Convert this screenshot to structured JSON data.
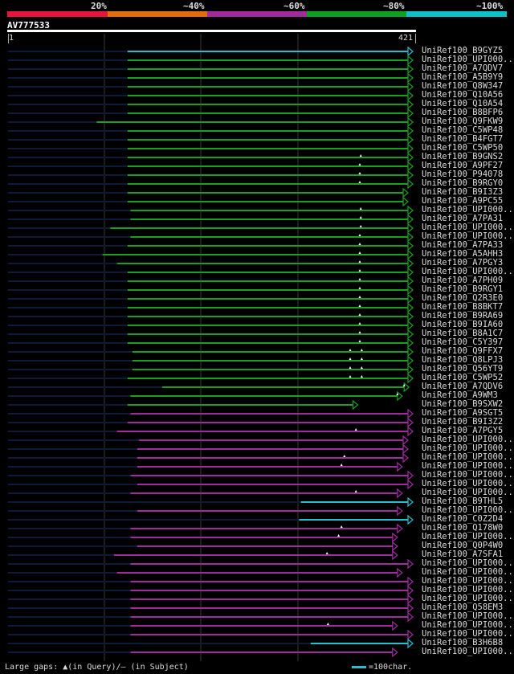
{
  "legend": {
    "labels": [
      "20%",
      "~40%",
      "~60%",
      "~80%",
      "~100%"
    ],
    "colors": [
      "#e8143c",
      "#e46c10",
      "#a02c9c",
      "#10a020",
      "#10c0c8"
    ]
  },
  "query": {
    "name": "AV777533",
    "start_label": "1",
    "end_label": "421",
    "length": 421
  },
  "footer": {
    "gaps_text": "Large gaps: ▲(in Query)/– (in Subject)",
    "scale_text": "=100char."
  },
  "palette": {
    "cyan": "#22c0d0",
    "green": "#18a020",
    "purple": "#a02ca0",
    "grid": "#3a3a3a",
    "track": "#0d1a3a",
    "marker": "#ffffff"
  },
  "hits": [
    {
      "name": "UniRef100_B9GYZ5",
      "color": "cyan",
      "start": 125,
      "end": 421,
      "markers": []
    },
    {
      "name": "UniRef100_UPI000..",
      "color": "green",
      "start": 125,
      "end": 421,
      "markers": []
    },
    {
      "name": "UniRef100_A7QDV7",
      "color": "green",
      "start": 125,
      "end": 421,
      "markers": []
    },
    {
      "name": "UniRef100_A5B9Y9",
      "color": "green",
      "start": 125,
      "end": 421,
      "markers": []
    },
    {
      "name": "UniRef100_Q8W347",
      "color": "green",
      "start": 125,
      "end": 421,
      "markers": []
    },
    {
      "name": "UniRef100_Q10A56",
      "color": "green",
      "start": 125,
      "end": 421,
      "markers": []
    },
    {
      "name": "UniRef100_Q10A54",
      "color": "green",
      "start": 125,
      "end": 421,
      "markers": []
    },
    {
      "name": "UniRef100_B8BFP6",
      "color": "green",
      "start": 125,
      "end": 421,
      "markers": []
    },
    {
      "name": "UniRef100_Q9FKW9",
      "color": "green",
      "start": 93,
      "end": 421,
      "markers": []
    },
    {
      "name": "UniRef100_C5WP48",
      "color": "green",
      "start": 125,
      "end": 421,
      "markers": []
    },
    {
      "name": "UniRef100_B4FGT7",
      "color": "green",
      "start": 125,
      "end": 421,
      "markers": []
    },
    {
      "name": "UniRef100_C5WP50",
      "color": "green",
      "start": 125,
      "end": 421,
      "markers": []
    },
    {
      "name": "UniRef100_B9GNS2",
      "color": "green",
      "start": 125,
      "end": 421,
      "markers": [
        367
      ]
    },
    {
      "name": "UniRef100_A9PF27",
      "color": "green",
      "start": 125,
      "end": 421,
      "markers": [
        366
      ]
    },
    {
      "name": "UniRef100_P94078",
      "color": "green",
      "start": 125,
      "end": 421,
      "markers": [
        366
      ]
    },
    {
      "name": "UniRef100_B9RGY0",
      "color": "green",
      "start": 125,
      "end": 421,
      "markers": [
        366
      ]
    },
    {
      "name": "UniRef100_B9I3Z3",
      "color": "green",
      "start": 125,
      "end": 416,
      "markers": []
    },
    {
      "name": "UniRef100_A9PC55",
      "color": "green",
      "start": 125,
      "end": 416,
      "markers": []
    },
    {
      "name": "UniRef100_UPI000..",
      "color": "green",
      "start": 128,
      "end": 421,
      "markers": [
        367
      ]
    },
    {
      "name": "UniRef100_A7PA31",
      "color": "green",
      "start": 128,
      "end": 421,
      "markers": [
        367
      ]
    },
    {
      "name": "UniRef100_UPI000..",
      "color": "green",
      "start": 107,
      "end": 421,
      "markers": [
        367
      ]
    },
    {
      "name": "UniRef100_UPI000..",
      "color": "green",
      "start": 128,
      "end": 421,
      "markers": [
        366
      ]
    },
    {
      "name": "UniRef100_A7PA33",
      "color": "green",
      "start": 125,
      "end": 421,
      "markers": [
        366
      ]
    },
    {
      "name": "UniRef100_A5AHH3",
      "color": "green",
      "start": 99,
      "end": 421,
      "markers": [
        366
      ]
    },
    {
      "name": "UniRef100_A7PGY3",
      "color": "green",
      "start": 114,
      "end": 421,
      "markers": [
        366
      ]
    },
    {
      "name": "UniRef100_UPI000..",
      "color": "green",
      "start": 125,
      "end": 421,
      "markers": [
        366
      ]
    },
    {
      "name": "UniRef100_A7PH09",
      "color": "green",
      "start": 125,
      "end": 421,
      "markers": [
        366
      ]
    },
    {
      "name": "UniRef100_B9RGY1",
      "color": "green",
      "start": 125,
      "end": 421,
      "markers": [
        366
      ]
    },
    {
      "name": "UniRef100_Q2R3E0",
      "color": "green",
      "start": 125,
      "end": 421,
      "markers": [
        366
      ]
    },
    {
      "name": "UniRef100_B8BKT7",
      "color": "green",
      "start": 125,
      "end": 421,
      "markers": [
        366
      ]
    },
    {
      "name": "UniRef100_B9RA69",
      "color": "green",
      "start": 125,
      "end": 421,
      "markers": [
        366
      ]
    },
    {
      "name": "UniRef100_B9IA60",
      "color": "green",
      "start": 125,
      "end": 421,
      "markers": [
        366
      ]
    },
    {
      "name": "UniRef100_B8A1C7",
      "color": "green",
      "start": 125,
      "end": 421,
      "markers": [
        366
      ]
    },
    {
      "name": "UniRef100_C5Y397",
      "color": "green",
      "start": 125,
      "end": 421,
      "markers": [
        366
      ]
    },
    {
      "name": "UniRef100_Q9FFX7",
      "color": "green",
      "start": 130,
      "end": 421,
      "markers": [
        356,
        368
      ]
    },
    {
      "name": "UniRef100_Q8LPJ3",
      "color": "green",
      "start": 130,
      "end": 421,
      "markers": [
        356,
        368
      ]
    },
    {
      "name": "UniRef100_Q56YT9",
      "color": "green",
      "start": 130,
      "end": 421,
      "markers": [
        356,
        368
      ]
    },
    {
      "name": "UniRef100_C5WP52",
      "color": "green",
      "start": 125,
      "end": 421,
      "markers": [
        356,
        368
      ]
    },
    {
      "name": "UniRef100_A7QDV6",
      "color": "green",
      "start": 161,
      "end": 417,
      "markers": [
        412
      ]
    },
    {
      "name": "UniRef100_A9WM3",
      "color": "green",
      "start": 128,
      "end": 410,
      "markers": [
        405
      ]
    },
    {
      "name": "UniRef100_B9SXW2",
      "color": "green",
      "start": 125,
      "end": 364,
      "markers": []
    },
    {
      "name": "UniRef100_A9SGT5",
      "color": "purple",
      "start": 128,
      "end": 421,
      "markers": []
    },
    {
      "name": "UniRef100_B9I3Z2",
      "color": "purple",
      "start": 125,
      "end": 421,
      "markers": []
    },
    {
      "name": "UniRef100_A7PGY5",
      "color": "purple",
      "start": 114,
      "end": 421,
      "markers": [
        362
      ]
    },
    {
      "name": "UniRef100_UPI000..",
      "color": "purple",
      "start": 137,
      "end": 416,
      "markers": []
    },
    {
      "name": "UniRef100_UPI000..",
      "color": "purple",
      "start": 135,
      "end": 416,
      "markers": []
    },
    {
      "name": "UniRef100_UPI000..",
      "color": "purple",
      "start": 135,
      "end": 416,
      "markers": [
        350
      ]
    },
    {
      "name": "UniRef100_UPI000..",
      "color": "purple",
      "start": 135,
      "end": 410,
      "markers": [
        347
      ]
    },
    {
      "name": "UniRef100_UPI000..",
      "color": "purple",
      "start": 128,
      "end": 421,
      "markers": []
    },
    {
      "name": "UniRef100_UPI000..",
      "color": "purple",
      "start": 135,
      "end": 421,
      "markers": []
    },
    {
      "name": "UniRef100_UPI000..",
      "color": "purple",
      "start": 128,
      "end": 410,
      "markers": [
        362
      ]
    },
    {
      "name": "UniRef100_B9THL5",
      "color": "cyan",
      "start": 305,
      "end": 421,
      "markers": []
    },
    {
      "name": "UniRef100_UPI000..",
      "color": "purple",
      "start": 135,
      "end": 410,
      "markers": []
    },
    {
      "name": "UniRef100_C0Z2D4",
      "color": "cyan",
      "start": 303,
      "end": 421,
      "markers": []
    },
    {
      "name": "UniRef100_Q178W0",
      "color": "purple",
      "start": 128,
      "end": 410,
      "markers": [
        347
      ]
    },
    {
      "name": "UniRef100_UPI000..",
      "color": "purple",
      "start": 128,
      "end": 405,
      "markers": [
        344
      ]
    },
    {
      "name": "UniRef100_Q0P4W0",
      "color": "purple",
      "start": 135,
      "end": 405,
      "markers": []
    },
    {
      "name": "UniRef100_A7SFA1",
      "color": "purple",
      "start": 111,
      "end": 405,
      "markers": [
        332
      ]
    },
    {
      "name": "UniRef100_UPI000..",
      "color": "purple",
      "start": 128,
      "end": 421,
      "markers": []
    },
    {
      "name": "UniRef100_UPI000..",
      "color": "purple",
      "start": 114,
      "end": 410,
      "markers": []
    },
    {
      "name": "UniRef100_UPI000..",
      "color": "purple",
      "start": 128,
      "end": 421,
      "markers": []
    },
    {
      "name": "UniRef100_UPI000..",
      "color": "purple",
      "start": 128,
      "end": 421,
      "markers": []
    },
    {
      "name": "UniRef100_UPI000..",
      "color": "purple",
      "start": 128,
      "end": 421,
      "markers": []
    },
    {
      "name": "UniRef100_Q58EM3",
      "color": "purple",
      "start": 128,
      "end": 421,
      "markers": []
    },
    {
      "name": "UniRef100_UPI000..",
      "color": "purple",
      "start": 128,
      "end": 421,
      "markers": []
    },
    {
      "name": "UniRef100_UPI000..",
      "color": "purple",
      "start": 128,
      "end": 405,
      "markers": [
        333
      ]
    },
    {
      "name": "UniRef100_UPI000..",
      "color": "purple",
      "start": 128,
      "end": 421,
      "markers": []
    },
    {
      "name": "UniRef100_B3H6B8",
      "color": "cyan",
      "start": 315,
      "end": 421,
      "markers": []
    },
    {
      "name": "UniRef100_UPI000..",
      "color": "purple",
      "start": 128,
      "end": 405,
      "markers": []
    }
  ]
}
